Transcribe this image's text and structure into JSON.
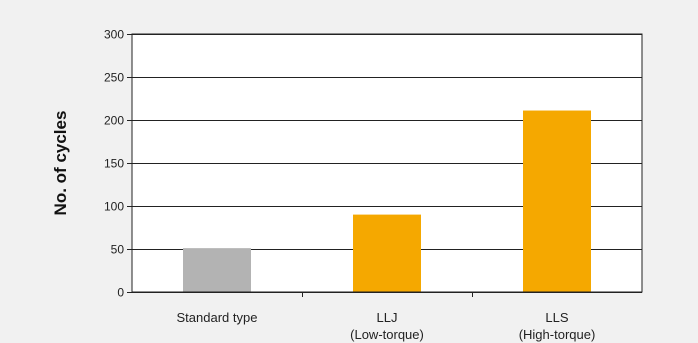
{
  "chart_data": {
    "type": "bar",
    "title": "",
    "xlabel": "",
    "ylabel": "No. of cycles",
    "ylim": [
      0,
      300
    ],
    "yticks": [
      0,
      50,
      100,
      150,
      200,
      250,
      300
    ],
    "grid": true,
    "categories": [
      [
        "Standard type"
      ],
      [
        "LLJ",
        "(Low-torque)"
      ],
      [
        "LLS",
        "(High-torque)"
      ]
    ],
    "values": [
      51,
      90,
      211
    ],
    "bar_colors": [
      "#b3b3b3",
      "#f5a800",
      "#f5a800"
    ]
  },
  "colors": {
    "background": "#f1f1f1",
    "plot_background": "#ffffff",
    "gridline": "#222222"
  }
}
